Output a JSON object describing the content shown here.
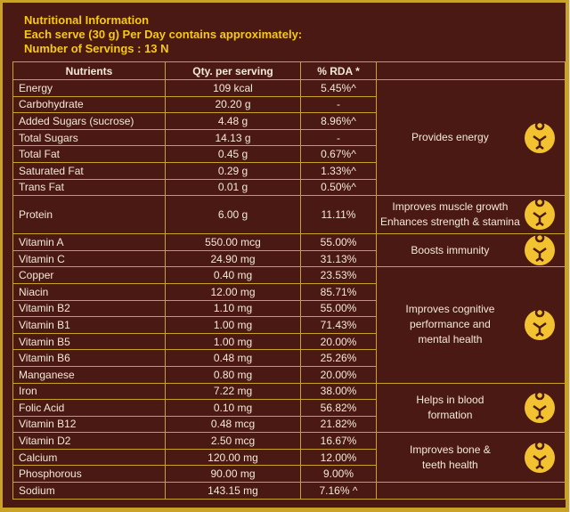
{
  "header": {
    "title": "Nutritional Information",
    "serving": "Each serve (30 g) Per Day contains approximately:",
    "servings": "Number of Servings : 13 N"
  },
  "table": {
    "columns": [
      "Nutrients",
      "Qty. per serving",
      "% RDA *"
    ],
    "rows": [
      [
        "Energy",
        "109 kcal",
        "5.45%^"
      ],
      [
        "Carbohydrate",
        "20.20 g",
        "-"
      ],
      [
        "Added Sugars (sucrose)",
        "4.48 g",
        "8.96%^"
      ],
      [
        "Total Sugars",
        "14.13 g",
        "-"
      ],
      [
        "Total Fat",
        "0.45 g",
        "0.67%^"
      ],
      [
        "Saturated Fat",
        "0.29 g",
        "1.33%^"
      ],
      [
        "Trans Fat",
        "0.01 g",
        "0.50%^"
      ],
      [
        "Protein",
        "6.00 g",
        "11.11%"
      ],
      [
        "Vitamin A",
        "550.00 mcg",
        "55.00%"
      ],
      [
        "Vitamin C",
        "24.90 mg",
        "31.13%"
      ],
      [
        "Copper",
        "0.40 mg",
        "23.53%"
      ],
      [
        "Niacin",
        "12.00 mg",
        "85.71%"
      ],
      [
        "Vitamin B2",
        "1.10 mg",
        "55.00%"
      ],
      [
        "Vitamin B1",
        "1.00 mg",
        "71.43%"
      ],
      [
        "Vitamin B5",
        "1.00 mg",
        "20.00%"
      ],
      [
        "Vitamin B6",
        "0.48 mg",
        "25.26%"
      ],
      [
        "Manganese",
        "0.80 mg",
        "20.00%"
      ],
      [
        "Iron",
        "7.22 mg",
        "38.00%"
      ],
      [
        "Folic Acid",
        "0.10 mg",
        "56.82%"
      ],
      [
        "Vitamin B12",
        "0.48 mcg",
        "21.82%"
      ],
      [
        "Vitamin D2",
        "2.50 mcg",
        "16.67%"
      ],
      [
        "Calcium",
        "120.00 mg",
        "12.00%"
      ],
      [
        "Phosphorous",
        "90.00 mg",
        "9.00%"
      ],
      [
        "Sodium",
        "143.15 mg",
        "7.16% ^"
      ]
    ],
    "benefits": [
      [
        "Provides energy"
      ],
      [
        "Improves muscle growth",
        "Enhances strength & stamina"
      ],
      [
        "Boosts immunity"
      ],
      [
        "Improves cognitive",
        "performance and",
        "mental health"
      ],
      [
        "Helps in blood",
        "formation"
      ],
      [
        "Improves bone &",
        "teeth health"
      ]
    ]
  }
}
